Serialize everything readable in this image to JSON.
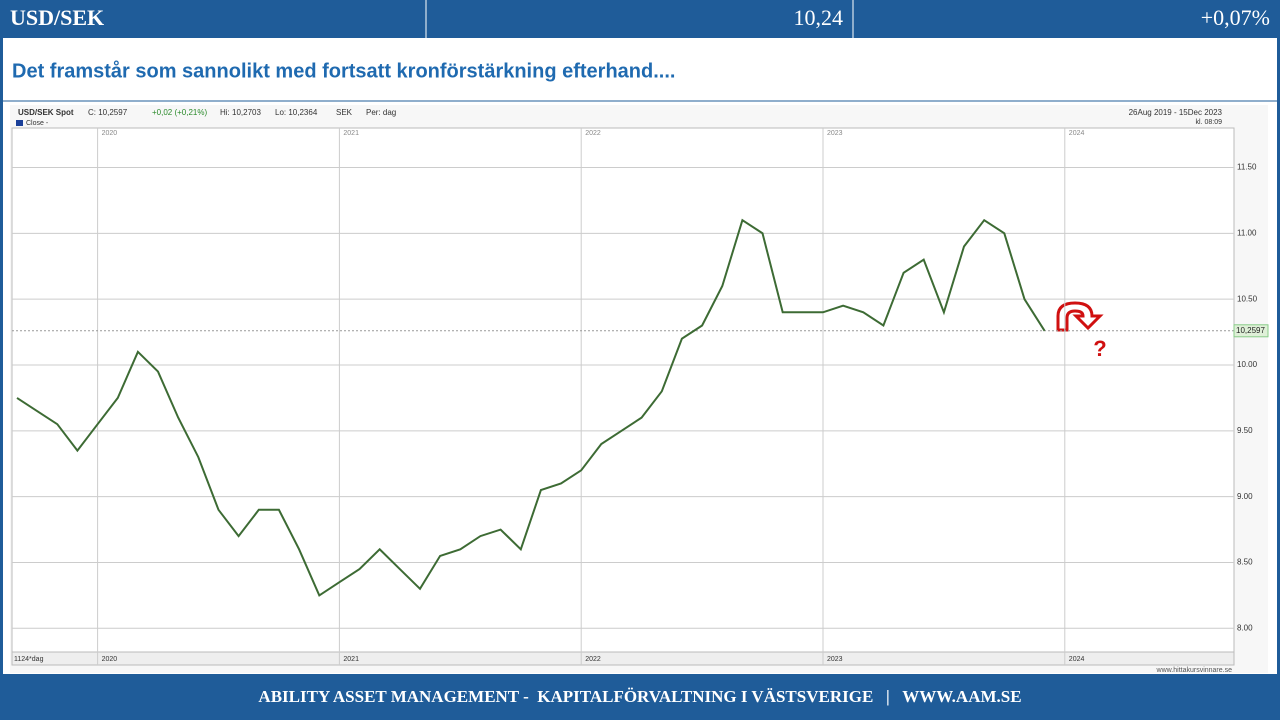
{
  "header": {
    "pair": "USD/SEK",
    "price": "10,24",
    "change": "+0,07%"
  },
  "subtitle": "Det framstår som sannolikt med fortsatt kronförstärkning efterhand....",
  "chart_data": {
    "type": "line",
    "title": "USD/SEK Spot",
    "info": [
      "C: 10,2597",
      "+0,02 (+0,21%)",
      "Hi: 10,2703",
      "Lo: 10,2364",
      "SEK",
      "Per: dag"
    ],
    "legend": "Close -",
    "period": "26Aug 2019 - 15Dec 2023",
    "time": "kl. 08:09",
    "interval": "1124*dag",
    "source": "www.hittakursvinnare.se",
    "annotation": "?",
    "categories": [
      null,
      null,
      null,
      null,
      "2020",
      null,
      null,
      null,
      null,
      null,
      null,
      null,
      null,
      null,
      null,
      null,
      "2021",
      null,
      null,
      null,
      null,
      null,
      null,
      null,
      null,
      null,
      null,
      null,
      "2022",
      null,
      null,
      null,
      null,
      null,
      null,
      null,
      null,
      null,
      null,
      null,
      "2023",
      null,
      null,
      null,
      null,
      null,
      null,
      null,
      null,
      null,
      null,
      null,
      "2024"
    ],
    "series": [
      {
        "name": "Close",
        "color": "#3d6b34",
        "values": [
          9.75,
          9.65,
          9.55,
          9.35,
          9.55,
          9.75,
          10.1,
          9.95,
          9.6,
          9.3,
          8.9,
          8.7,
          8.9,
          8.9,
          8.6,
          8.25,
          8.35,
          8.45,
          8.6,
          8.45,
          8.3,
          8.55,
          8.6,
          8.7,
          8.75,
          8.6,
          9.05,
          9.1,
          9.2,
          9.4,
          9.5,
          9.6,
          9.8,
          10.2,
          10.3,
          10.6,
          11.1,
          11.0,
          10.4,
          10.4,
          10.4,
          10.45,
          10.4,
          10.3,
          10.7,
          10.8,
          10.4,
          10.9,
          11.1,
          11.0,
          10.5,
          10.26,
          null
        ]
      }
    ],
    "last": {
      "value": 10.2597,
      "label": "10,2597"
    },
    "ylim": [
      7.82,
      11.8
    ],
    "yticks": [
      {
        "value": 8,
        "label": "8.00"
      },
      {
        "value": 8.5,
        "label": "8.50"
      },
      {
        "value": 9,
        "label": "9.00"
      },
      {
        "value": 9.5,
        "label": "9.50"
      },
      {
        "value": 10,
        "label": "10.00"
      },
      {
        "value": 10.5,
        "label": "10.50"
      },
      {
        "value": 11,
        "label": "11.00"
      },
      {
        "value": 11.5,
        "label": "11.50"
      }
    ],
    "grid": true
  },
  "footer": "ABILITY ASSET MANAGEMENT -  KAPITALFÖRVALTNING I VÄSTSVERIGE   |   WWW.AAM.SE"
}
